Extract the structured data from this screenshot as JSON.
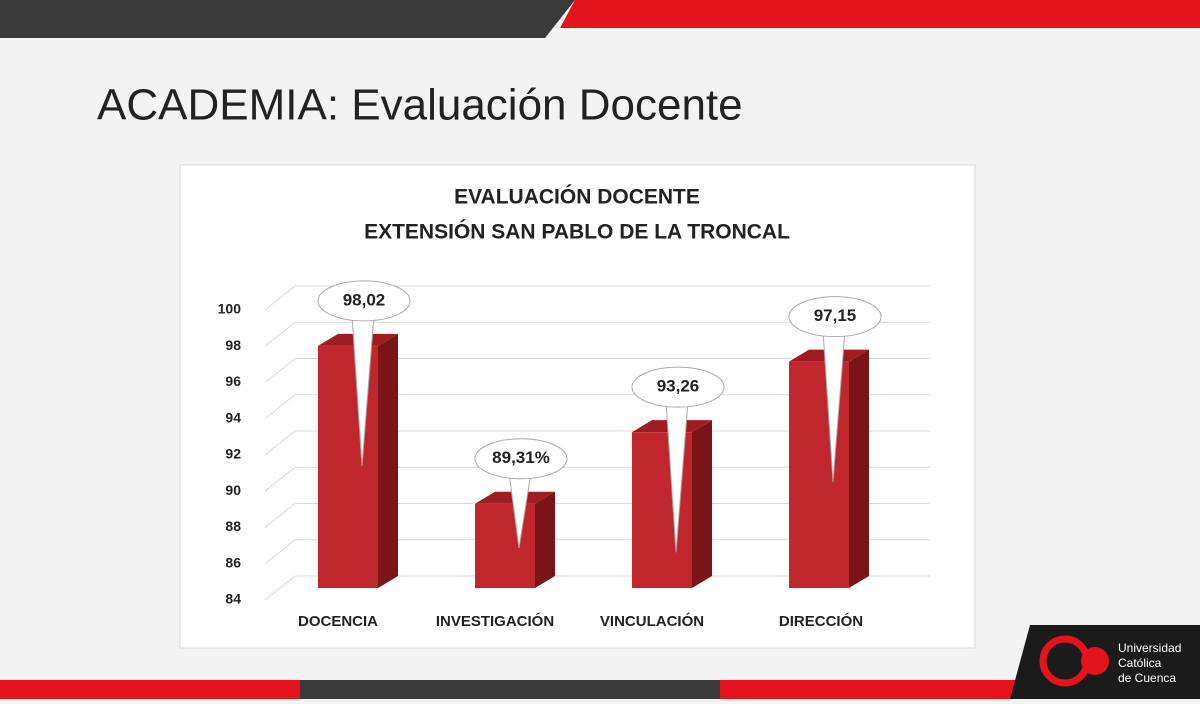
{
  "slide_title": "ACADEMIA: Evaluación Docente",
  "logo": {
    "lines": [
      "Universidad",
      "Católica",
      "de Cuenca"
    ]
  },
  "chart_data": {
    "type": "bar",
    "title": "EVALUACIÓN DOCENTE",
    "subtitle": "EXTENSIÓN SAN PABLO DE LA TRONCAL",
    "categories": [
      "DOCENCIA",
      "INVESTIGACIÓN",
      "VINCULACIÓN",
      "DIRECCIÓN"
    ],
    "values": [
      98.02,
      89.31,
      93.26,
      97.15
    ],
    "value_labels": [
      "98,02",
      "89,31%",
      "93,26",
      "97,15"
    ],
    "color": "#c0272d",
    "ylim": [
      84,
      100
    ],
    "yticks": [
      84,
      86,
      88,
      90,
      92,
      94,
      96,
      98,
      100
    ],
    "grid": true
  }
}
